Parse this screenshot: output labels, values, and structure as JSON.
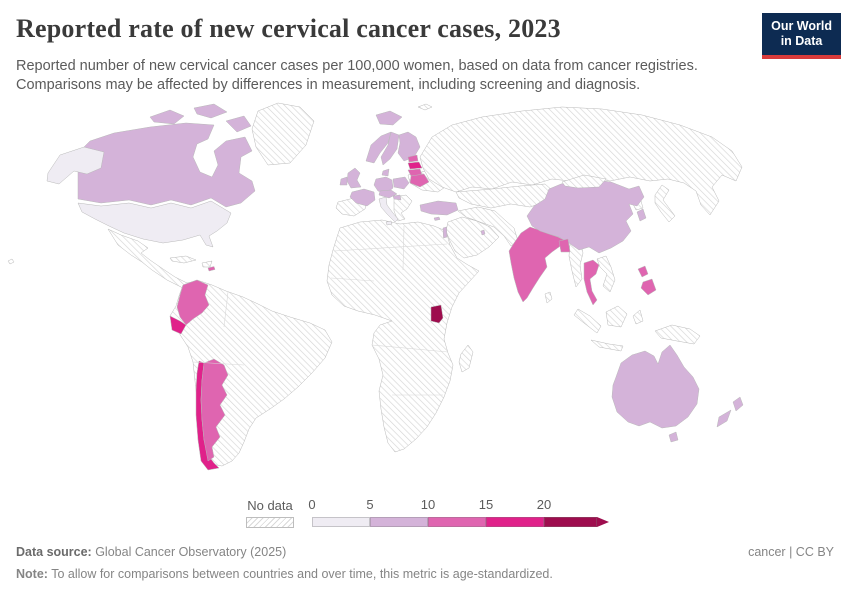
{
  "header": {
    "title": "Reported rate of new cervical cancer cases, 2023",
    "subtitle_line1": "Reported number of new cervical cancer cases per 100,000 women, based on data from cancer registries.",
    "subtitle_line2": "Comparisons may be affected by differences in measurement, including screening and diagnosis.",
    "logo": {
      "line1": "Our World",
      "line2": "in Data",
      "bg_color": "#0d2b52",
      "accent_color": "#d93b3b"
    }
  },
  "legend": {
    "no_data_label": "No data",
    "tick_labels": [
      "0",
      "5",
      "10",
      "15",
      "20"
    ]
  },
  "footer": {
    "data_source_label": "Data source:",
    "data_source_text": " Global Cancer Observatory (2025)",
    "license_text": "cancer | CC BY",
    "note_label": "Note:",
    "note_text": " To allow for comparisons between countries and over time, this metric is age-standardized."
  },
  "chart_data": {
    "type": "choropleth",
    "title": "Reported rate of new cervical cancer cases, 2023",
    "unit": "new cervical cancer cases per 100,000 women",
    "year": 2023,
    "legend_position": "bottom",
    "bin_edges": [
      0,
      5,
      10,
      15,
      20
    ],
    "bin_labels": [
      "0-5",
      "5-10",
      "10-15",
      "15-20",
      "20+"
    ],
    "bin_colors": [
      "#efecf3",
      "#d4b3d9",
      "#df65b0",
      "#e0218a",
      "#9e0d4e"
    ],
    "no_data_style": "diagonal-hatch",
    "countries": {
      "United States": "0-5",
      "Italy": "0-5",
      "Canada": "5-10",
      "Iceland": "5-10",
      "Norway": "5-10",
      "Sweden": "5-10",
      "Finland": "5-10",
      "Denmark": "5-10",
      "United Kingdom": "5-10",
      "Ireland": "5-10",
      "France": "5-10",
      "Germany": "5-10",
      "Poland": "5-10",
      "Czechia": "5-10",
      "Croatia": "5-10",
      "Turkey": "5-10",
      "Cyprus": "5-10",
      "Israel": "5-10",
      "Qatar": "5-10",
      "China": "5-10",
      "South Korea": "5-10",
      "Australia": "5-10",
      "New Zealand": "5-10",
      "Puerto Rico": "10-15",
      "Colombia": "10-15",
      "Argentina": "10-15",
      "Estonia": "10-15",
      "Lithuania": "10-15",
      "Belarus": "10-15",
      "India": "10-15",
      "Bangladesh": "10-15",
      "Thailand": "10-15",
      "Philippines": "10-15",
      "Ecuador": "15-20",
      "Chile": "15-20",
      "Latvia": "15-20",
      "Uganda": "20+"
    },
    "no_data_countries": [
      "Greenland",
      "Mexico",
      "Central America",
      "Cuba",
      "Hispaniola",
      "Venezuela",
      "Guyana",
      "Brazil",
      "Peru",
      "Bolivia",
      "Paraguay",
      "Uruguay",
      "Spain",
      "Portugal",
      "Balkans",
      "Ukraine",
      "Russia",
      "Kazakhstan",
      "Central Asia",
      "Iran",
      "Pakistan",
      "Saudi Arabia",
      "Africa (most countries)",
      "Madagascar",
      "Mongolia",
      "Japan",
      "North Korea",
      "Myanmar",
      "Vietnam",
      "Laos",
      "Cambodia",
      "Sri Lanka",
      "Malaysia",
      "Indonesia",
      "Papua New Guinea",
      "Hawaii",
      "Svalbard"
    ]
  }
}
